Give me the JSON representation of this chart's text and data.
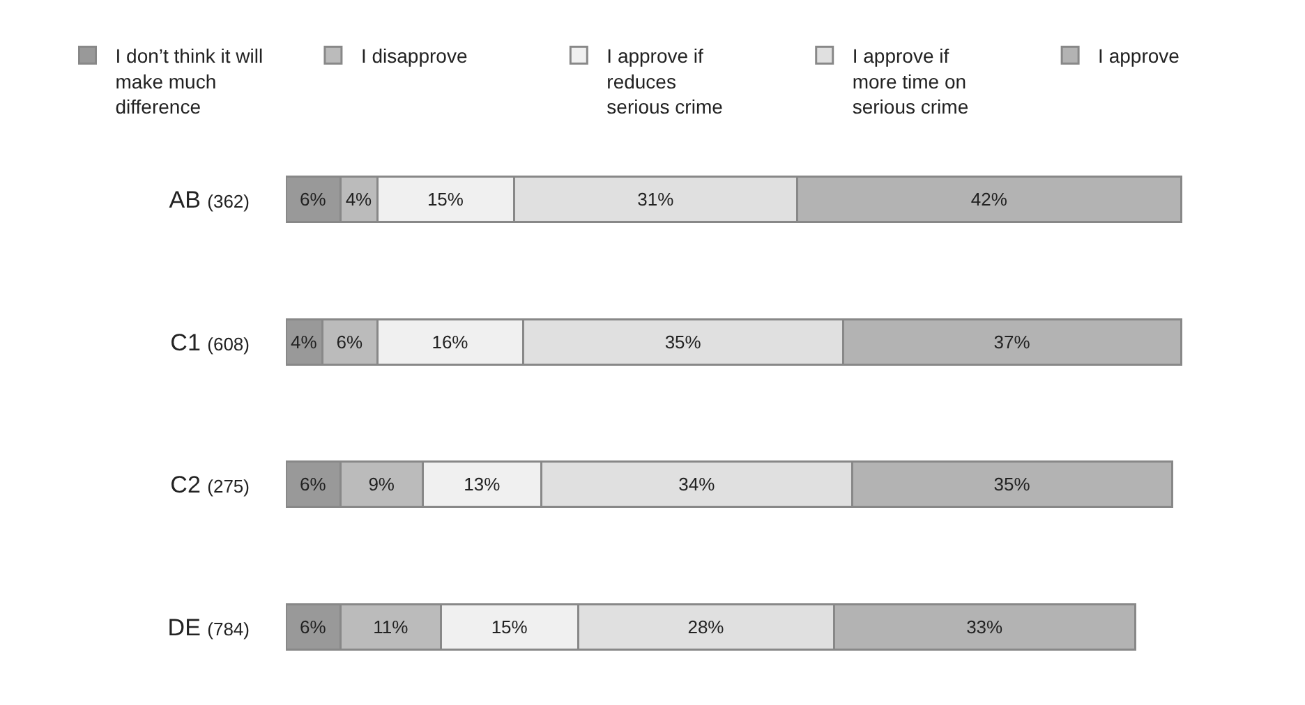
{
  "chart_data": {
    "type": "bar",
    "orientation": "horizontal",
    "stacked": true,
    "legend": "top",
    "categories": [
      "AB (362)",
      "C1 (608)",
      "C2 (275)",
      "DE (784)"
    ],
    "series": [
      {
        "name": "I don’t think it will\nmake much\ndifference",
        "color": "#999999",
        "values": [
          6,
          4,
          6,
          6
        ],
        "value_labels": [
          "6%",
          "4%",
          "6%",
          "6%"
        ]
      },
      {
        "name": "I disapprove",
        "color": "#bbbbbb",
        "values": [
          4,
          6,
          9,
          11
        ],
        "value_labels": [
          "4%",
          "6%",
          "9%",
          "11%"
        ]
      },
      {
        "name": "I approve if\nreduces\nserious crime",
        "color": "#f0f0f0",
        "values": [
          15,
          16,
          13,
          15
        ],
        "value_labels": [
          "15%",
          "16%",
          "13%",
          "15%"
        ]
      },
      {
        "name": "I approve if\nmore time on\nserious crime",
        "color": "#e0e0e0",
        "values": [
          31,
          35,
          34,
          28
        ],
        "value_labels": [
          "31%",
          "35%",
          "34%",
          "28%"
        ]
      },
      {
        "name": "I approve",
        "color": "#b3b3b3",
        "values": [
          42,
          37,
          35,
          33
        ],
        "value_labels": [
          "42%",
          "37%",
          "35%",
          "33%"
        ]
      }
    ]
  }
}
